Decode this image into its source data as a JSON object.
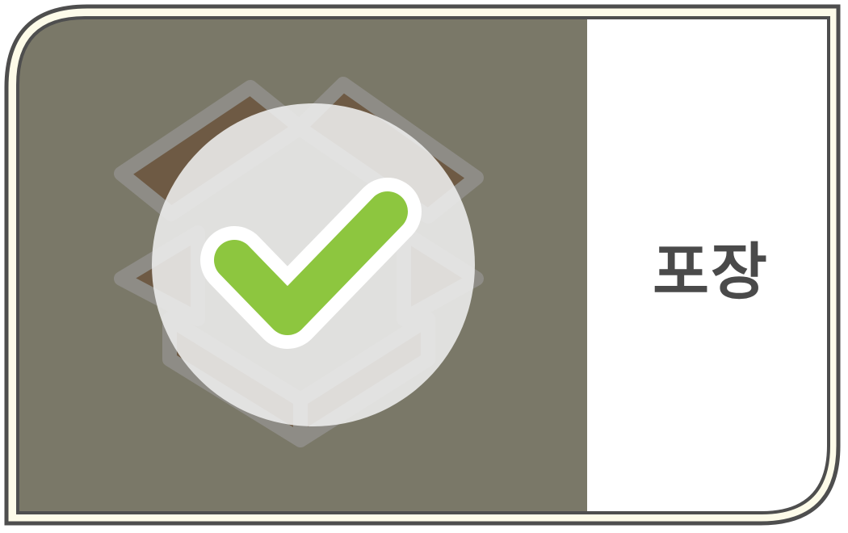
{
  "card": {
    "label": "포장",
    "icon": "open-box-check-icon",
    "colors": {
      "panel": "#7a7868",
      "frame": "#4e4e4e",
      "frame_fill": "#fdfbe9",
      "box": "#6e5a44",
      "box_outline": "#8e8c86",
      "circle": "#eeeeee",
      "check": "#8dc63f",
      "label_text": "#4a4a4a"
    }
  }
}
